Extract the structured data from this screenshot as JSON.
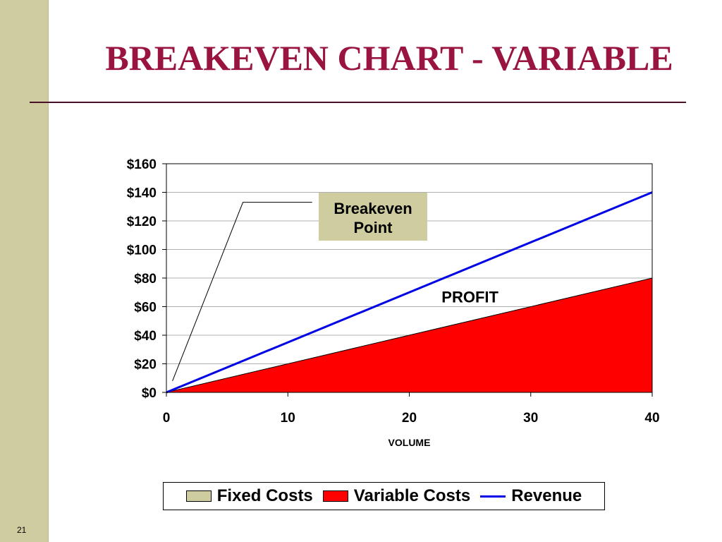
{
  "slide": {
    "title": "BREAKEVEN CHART - VARIABLE",
    "page_number": "21",
    "colors": {
      "title": "#99143e",
      "side_strip": "#cfcda0",
      "rule": "#4a1028"
    }
  },
  "chart_data": {
    "type": "area",
    "title": "",
    "xlabel": "VOLUME",
    "ylabel": "",
    "xlim": [
      0,
      40
    ],
    "ylim": [
      0,
      160
    ],
    "x_ticks": [
      0,
      10,
      20,
      30,
      40
    ],
    "x_tick_labels": [
      "0",
      "10",
      "20",
      "30",
      "40"
    ],
    "y_ticks": [
      0,
      20,
      40,
      60,
      80,
      100,
      120,
      140,
      160
    ],
    "y_tick_labels": [
      "$0",
      "$20",
      "$40",
      "$60",
      "$80",
      "$100",
      "$120",
      "$140",
      "$160"
    ],
    "grid": true,
    "legend_position": "bottom",
    "series": [
      {
        "name": "Fixed Costs",
        "kind": "area",
        "color": "#cfcda0",
        "x": [
          0,
          40
        ],
        "values": [
          0,
          0
        ]
      },
      {
        "name": "Variable Costs",
        "kind": "area",
        "color": "#ff0000",
        "x": [
          0,
          40
        ],
        "values": [
          0,
          80
        ]
      },
      {
        "name": "Revenue",
        "kind": "line",
        "color": "#0000e6",
        "x": [
          0,
          40
        ],
        "values": [
          0,
          140
        ]
      }
    ],
    "annotations": [
      {
        "text_lines": [
          "Breakeven",
          "Point"
        ],
        "callout": true,
        "bg": "#cfcda0",
        "point": [
          0.5,
          8
        ]
      },
      {
        "text": "PROFIT",
        "at": [
          25,
          65
        ]
      }
    ]
  }
}
